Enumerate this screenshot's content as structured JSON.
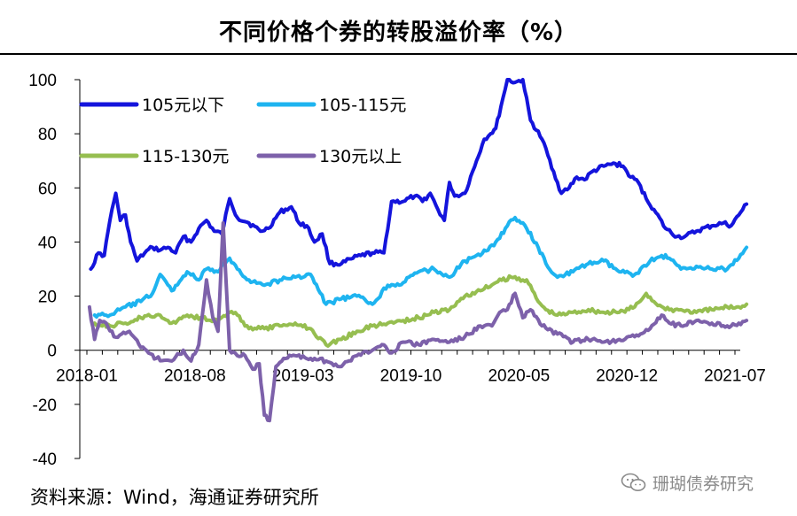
{
  "title": "不同价格个券的转股溢价率（%）",
  "source": "资料来源：Wind，海通证券研究所",
  "watermark": "珊瑚债券研究",
  "chart_data": {
    "type": "line",
    "title": "不同价格个券的转股溢价率（%）",
    "xlabel": "",
    "ylabel": "",
    "ylim": [
      -40,
      100
    ],
    "yticks": [
      -40,
      -20,
      0,
      20,
      40,
      60,
      80,
      100
    ],
    "x_range": [
      "2018-01",
      "2021-07"
    ],
    "x_ticks": [
      "2018-01",
      "2018-08",
      "2019-03",
      "2019-10",
      "2020-05",
      "2020-12",
      "2021-07"
    ],
    "grid": false,
    "legend_position": "top-left",
    "series": [
      {
        "name": "105元以下",
        "color": "#1414dc",
        "points": [
          [
            "2018-01",
            30
          ],
          [
            "2018-01",
            36
          ],
          [
            "2018-02",
            35
          ],
          [
            "2018-02",
            44
          ],
          [
            "2018-02",
            52
          ],
          [
            "2018-02",
            58
          ],
          [
            "2018-03",
            48
          ],
          [
            "2018-03",
            50
          ],
          [
            "2018-03",
            40
          ],
          [
            "2018-04",
            33
          ],
          [
            "2018-04",
            36
          ],
          [
            "2018-05",
            38
          ],
          [
            "2018-05",
            37
          ],
          [
            "2018-06",
            38
          ],
          [
            "2018-06",
            36
          ],
          [
            "2018-07",
            42
          ],
          [
            "2018-07",
            40
          ],
          [
            "2018-08",
            45
          ],
          [
            "2018-08",
            48
          ],
          [
            "2018-09",
            44
          ],
          [
            "2018-09",
            43
          ],
          [
            "2018-10",
            56
          ],
          [
            "2018-10",
            49
          ],
          [
            "2018-11",
            47
          ],
          [
            "2018-12",
            44
          ],
          [
            "2018-12",
            45
          ],
          [
            "2019-01",
            51
          ],
          [
            "2019-02",
            53
          ],
          [
            "2019-02",
            47
          ],
          [
            "2019-03",
            46
          ],
          [
            "2019-03",
            40
          ],
          [
            "2019-04",
            43
          ],
          [
            "2019-04",
            32
          ],
          [
            "2019-05",
            32
          ],
          [
            "2019-06",
            34
          ],
          [
            "2019-06",
            35
          ],
          [
            "2019-07",
            36
          ],
          [
            "2019-08",
            36
          ],
          [
            "2019-08",
            55
          ],
          [
            "2019-09",
            55
          ],
          [
            "2019-10",
            57
          ],
          [
            "2019-10",
            55
          ],
          [
            "2019-11",
            58
          ],
          [
            "2019-11",
            52
          ],
          [
            "2019-12",
            48
          ],
          [
            "2019-12",
            62
          ],
          [
            "2019-12",
            57
          ],
          [
            "2020-01",
            58
          ],
          [
            "2020-02",
            70
          ],
          [
            "2020-02",
            78
          ],
          [
            "2020-03",
            80
          ],
          [
            "2020-03",
            82
          ],
          [
            "2020-03",
            90
          ],
          [
            "2020-04",
            100
          ],
          [
            "2020-04",
            99
          ],
          [
            "2020-05",
            100
          ],
          [
            "2020-05",
            85
          ],
          [
            "2020-06",
            78
          ],
          [
            "2020-07",
            66
          ],
          [
            "2020-07",
            58
          ],
          [
            "2020-08",
            60
          ],
          [
            "2020-08",
            64
          ],
          [
            "2020-09",
            63
          ],
          [
            "2020-09",
            66
          ],
          [
            "2020-10",
            68
          ],
          [
            "2020-11",
            69
          ],
          [
            "2020-11",
            68
          ],
          [
            "2020-12",
            64
          ],
          [
            "2020-12",
            62
          ],
          [
            "2021-01",
            56
          ],
          [
            "2021-01",
            52
          ],
          [
            "2021-02",
            45
          ],
          [
            "2021-03",
            42
          ],
          [
            "2021-03",
            42
          ],
          [
            "2021-04",
            44
          ],
          [
            "2021-05",
            46
          ],
          [
            "2021-06",
            47
          ],
          [
            "2021-06",
            46
          ],
          [
            "2021-07",
            50
          ],
          [
            "2021-07",
            54
          ]
        ]
      },
      {
        "name": "105-115元",
        "color": "#1eb4f0",
        "points": [
          [
            "2018-01",
            13
          ],
          [
            "2018-02",
            13
          ],
          [
            "2018-03",
            16
          ],
          [
            "2018-04",
            18
          ],
          [
            "2018-05",
            21
          ],
          [
            "2018-05",
            28
          ],
          [
            "2018-06",
            22
          ],
          [
            "2018-07",
            29
          ],
          [
            "2018-08",
            26
          ],
          [
            "2018-08",
            30
          ],
          [
            "2018-09",
            29
          ],
          [
            "2018-10",
            34
          ],
          [
            "2018-10",
            30
          ],
          [
            "2018-11",
            26
          ],
          [
            "2018-12",
            24
          ],
          [
            "2019-01",
            26
          ],
          [
            "2019-02",
            27
          ],
          [
            "2019-03",
            28
          ],
          [
            "2019-04",
            17
          ],
          [
            "2019-05",
            19
          ],
          [
            "2019-06",
            20
          ],
          [
            "2019-07",
            17
          ],
          [
            "2019-08",
            24
          ],
          [
            "2019-09",
            25
          ],
          [
            "2019-10",
            29
          ],
          [
            "2019-11",
            30
          ],
          [
            "2019-12",
            27
          ],
          [
            "2020-01",
            33
          ],
          [
            "2020-02",
            35
          ],
          [
            "2020-03",
            40
          ],
          [
            "2020-04",
            46
          ],
          [
            "2020-04",
            49
          ],
          [
            "2020-05",
            45
          ],
          [
            "2020-06",
            38
          ],
          [
            "2020-06",
            32
          ],
          [
            "2020-07",
            27
          ],
          [
            "2020-08",
            29
          ],
          [
            "2020-09",
            32
          ],
          [
            "2020-10",
            33
          ],
          [
            "2020-11",
            29
          ],
          [
            "2020-12",
            28
          ],
          [
            "2021-01",
            33
          ],
          [
            "2021-02",
            35
          ],
          [
            "2021-02",
            34
          ],
          [
            "2021-03",
            30
          ],
          [
            "2021-04",
            31
          ],
          [
            "2021-05",
            30
          ],
          [
            "2021-06",
            30
          ],
          [
            "2021-07",
            34
          ],
          [
            "2021-07",
            38
          ]
        ]
      },
      {
        "name": "115-130元",
        "color": "#96be50",
        "points": [
          [
            "2018-01",
            10
          ],
          [
            "2018-02",
            9
          ],
          [
            "2018-03",
            10
          ],
          [
            "2018-04",
            12
          ],
          [
            "2018-05",
            13
          ],
          [
            "2018-06",
            10
          ],
          [
            "2018-07",
            13
          ],
          [
            "2018-08",
            12
          ],
          [
            "2018-09",
            11
          ],
          [
            "2018-10",
            14
          ],
          [
            "2018-10",
            13
          ],
          [
            "2018-11",
            8
          ],
          [
            "2018-12",
            8
          ],
          [
            "2019-01",
            9
          ],
          [
            "2019-02",
            10
          ],
          [
            "2019-03",
            8
          ],
          [
            "2019-04",
            2
          ],
          [
            "2019-05",
            4
          ],
          [
            "2019-06",
            7
          ],
          [
            "2019-07",
            9
          ],
          [
            "2019-08",
            10
          ],
          [
            "2019-09",
            11
          ],
          [
            "2019-10",
            12
          ],
          [
            "2019-11",
            14
          ],
          [
            "2019-12",
            15
          ],
          [
            "2020-01",
            20
          ],
          [
            "2020-02",
            22
          ],
          [
            "2020-03",
            25
          ],
          [
            "2020-04",
            27
          ],
          [
            "2020-05",
            26
          ],
          [
            "2020-06",
            18
          ],
          [
            "2020-06",
            15
          ],
          [
            "2020-07",
            13
          ],
          [
            "2020-08",
            14
          ],
          [
            "2020-09",
            15
          ],
          [
            "2020-10",
            14
          ],
          [
            "2020-11",
            14
          ],
          [
            "2020-12",
            16
          ],
          [
            "2021-01",
            21
          ],
          [
            "2021-01",
            18
          ],
          [
            "2021-02",
            15
          ],
          [
            "2021-03",
            15
          ],
          [
            "2021-04",
            14
          ],
          [
            "2021-05",
            15
          ],
          [
            "2021-06",
            16
          ],
          [
            "2021-07",
            16
          ],
          [
            "2021-07",
            17
          ]
        ]
      },
      {
        "name": "130元以上",
        "color": "#7d61aa",
        "points": [
          [
            "2018-01",
            16
          ],
          [
            "2018-01",
            4
          ],
          [
            "2018-01",
            11
          ],
          [
            "2018-02",
            10
          ],
          [
            "2018-02",
            5
          ],
          [
            "2018-03",
            6
          ],
          [
            "2018-03",
            7
          ],
          [
            "2018-04",
            1
          ],
          [
            "2018-05",
            -3
          ],
          [
            "2018-06",
            -4
          ],
          [
            "2018-07",
            0
          ],
          [
            "2018-07",
            -4
          ],
          [
            "2018-08",
            2
          ],
          [
            "2018-08",
            26
          ],
          [
            "2018-09",
            12
          ],
          [
            "2018-09",
            7
          ],
          [
            "2018-09",
            47
          ],
          [
            "2018-10",
            0
          ],
          [
            "2018-10",
            -2
          ],
          [
            "2018-11",
            -2
          ],
          [
            "2018-11",
            -7
          ],
          [
            "2018-12",
            -5
          ],
          [
            "2018-12",
            -24
          ],
          [
            "2018-12",
            -26
          ],
          [
            "2019-01",
            -6
          ],
          [
            "2019-01",
            -3
          ],
          [
            "2019-02",
            -2
          ],
          [
            "2019-03",
            -3
          ],
          [
            "2019-04",
            -4
          ],
          [
            "2019-05",
            -6
          ],
          [
            "2019-06",
            -2
          ],
          [
            "2019-07",
            0
          ],
          [
            "2019-08",
            2
          ],
          [
            "2019-08",
            -1
          ],
          [
            "2019-09",
            3
          ],
          [
            "2019-10",
            2
          ],
          [
            "2019-11",
            4
          ],
          [
            "2019-12",
            3
          ],
          [
            "2020-01",
            5
          ],
          [
            "2020-02",
            9
          ],
          [
            "2020-03",
            9
          ],
          [
            "2020-03",
            14
          ],
          [
            "2020-04",
            15
          ],
          [
            "2020-04",
            21
          ],
          [
            "2020-05",
            12
          ],
          [
            "2020-05",
            15
          ],
          [
            "2020-06",
            9
          ],
          [
            "2020-07",
            6
          ],
          [
            "2020-08",
            3
          ],
          [
            "2020-09",
            4
          ],
          [
            "2020-10",
            3
          ],
          [
            "2020-11",
            4
          ],
          [
            "2020-12",
            5
          ],
          [
            "2021-01",
            8
          ],
          [
            "2021-02",
            13
          ],
          [
            "2021-02",
            10
          ],
          [
            "2021-03",
            9
          ],
          [
            "2021-04",
            11
          ],
          [
            "2021-05",
            10
          ],
          [
            "2021-06",
            9
          ],
          [
            "2021-07",
            10
          ],
          [
            "2021-07",
            11
          ]
        ]
      }
    ]
  }
}
